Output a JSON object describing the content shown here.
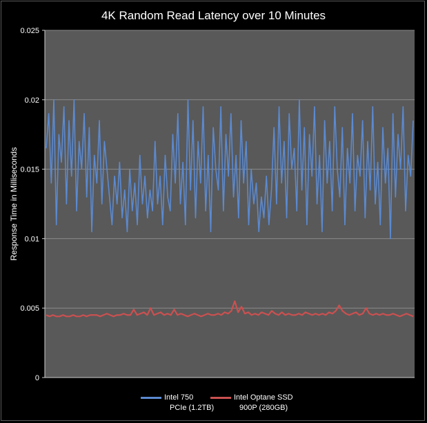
{
  "chart_data": {
    "type": "line",
    "title": "4K Random Read Latency over 10 Minutes",
    "xlabel": "",
    "ylabel": "Response Time in Milliseconds",
    "ylim": [
      0,
      0.025
    ],
    "yticks": [
      "0",
      "0.005",
      "0.01",
      "0.015",
      "0.02",
      "0.025"
    ],
    "grid": true,
    "legend_position": "bottom",
    "background_color": "#595959",
    "series": [
      {
        "name": "Intel 750 PCIe (1.2TB)",
        "legend_lines": [
          "Intel 750",
          "PCIe (1.2TB)"
        ],
        "color": "#5b8ad1",
        "values": [
          0.0165,
          0.019,
          0.014,
          0.02,
          0.011,
          0.0175,
          0.0155,
          0.0195,
          0.0125,
          0.0185,
          0.0145,
          0.02,
          0.012,
          0.017,
          0.015,
          0.019,
          0.013,
          0.018,
          0.0105,
          0.016,
          0.014,
          0.0185,
          0.0125,
          0.017,
          0.015,
          0.013,
          0.011,
          0.0145,
          0.0125,
          0.0155,
          0.0115,
          0.0135,
          0.0105,
          0.015,
          0.012,
          0.014,
          0.011,
          0.016,
          0.0125,
          0.0145,
          0.0115,
          0.0135,
          0.012,
          0.017,
          0.0125,
          0.0145,
          0.011,
          0.016,
          0.013,
          0.012,
          0.0175,
          0.014,
          0.019,
          0.0125,
          0.0155,
          0.011,
          0.02,
          0.0135,
          0.0185,
          0.0115,
          0.017,
          0.014,
          0.0195,
          0.012,
          0.016,
          0.0105,
          0.018,
          0.015,
          0.0135,
          0.0195,
          0.012,
          0.0175,
          0.0145,
          0.019,
          0.013,
          0.016,
          0.0115,
          0.0185,
          0.014,
          0.017,
          0.011,
          0.015,
          0.0125,
          0.014,
          0.0105,
          0.013,
          0.0115,
          0.0145,
          0.011,
          0.0135,
          0.018,
          0.0125,
          0.0195,
          0.014,
          0.017,
          0.0115,
          0.019,
          0.015,
          0.0165,
          0.012,
          0.02,
          0.0135,
          0.018,
          0.011,
          0.0175,
          0.0145,
          0.0195,
          0.0125,
          0.016,
          0.0105,
          0.0185,
          0.014,
          0.017,
          0.012,
          0.0195,
          0.015,
          0.013,
          0.018,
          0.011,
          0.0165,
          0.014,
          0.019,
          0.012,
          0.016,
          0.0145,
          0.0185,
          0.0115,
          0.017,
          0.0135,
          0.0195,
          0.0125,
          0.0155,
          0.011,
          0.018,
          0.014,
          0.0165,
          0.01,
          0.019,
          0.013,
          0.0175,
          0.015,
          0.0195,
          0.012,
          0.016,
          0.0145,
          0.0185
        ],
        "min": 0.01,
        "max": 0.02
      },
      {
        "name": "Intel Optane SSD 900P (280GB)",
        "legend_lines": [
          "Intel Optane SSD",
          "900P (280GB)"
        ],
        "color": "#cc5050",
        "values": [
          0.0045,
          0.0044,
          0.0045,
          0.0044,
          0.0044,
          0.0045,
          0.0044,
          0.0044,
          0.0045,
          0.0044,
          0.0044,
          0.0045,
          0.0044,
          0.0045,
          0.0045,
          0.0045,
          0.0044,
          0.0045,
          0.0046,
          0.0045,
          0.0044,
          0.0045,
          0.0045,
          0.0046,
          0.0045,
          0.0045,
          0.0049,
          0.0045,
          0.0046,
          0.0047,
          0.0045,
          0.005,
          0.0045,
          0.0046,
          0.0047,
          0.0045,
          0.0046,
          0.0045,
          0.0049,
          0.0045,
          0.0046,
          0.0045,
          0.0044,
          0.0045,
          0.0046,
          0.0045,
          0.0044,
          0.0045,
          0.0046,
          0.0045,
          0.0045,
          0.0046,
          0.0045,
          0.0047,
          0.0046,
          0.0048,
          0.0055,
          0.0047,
          0.0051,
          0.0046,
          0.0047,
          0.0045,
          0.0046,
          0.0045,
          0.0047,
          0.0046,
          0.0045,
          0.0048,
          0.0046,
          0.0045,
          0.0047,
          0.0045,
          0.0046,
          0.0045,
          0.0045,
          0.0046,
          0.0045,
          0.0047,
          0.0046,
          0.0045,
          0.0046,
          0.0045,
          0.0046,
          0.0045,
          0.0047,
          0.0046,
          0.0048,
          0.0052,
          0.0048,
          0.0046,
          0.0045,
          0.0046,
          0.0047,
          0.0045,
          0.0046,
          0.005,
          0.0046,
          0.0045,
          0.0046,
          0.0045,
          0.0046,
          0.0045,
          0.0045,
          0.0046,
          0.0045,
          0.0044,
          0.0045,
          0.0046,
          0.0045,
          0.0044
        ]
      }
    ]
  }
}
